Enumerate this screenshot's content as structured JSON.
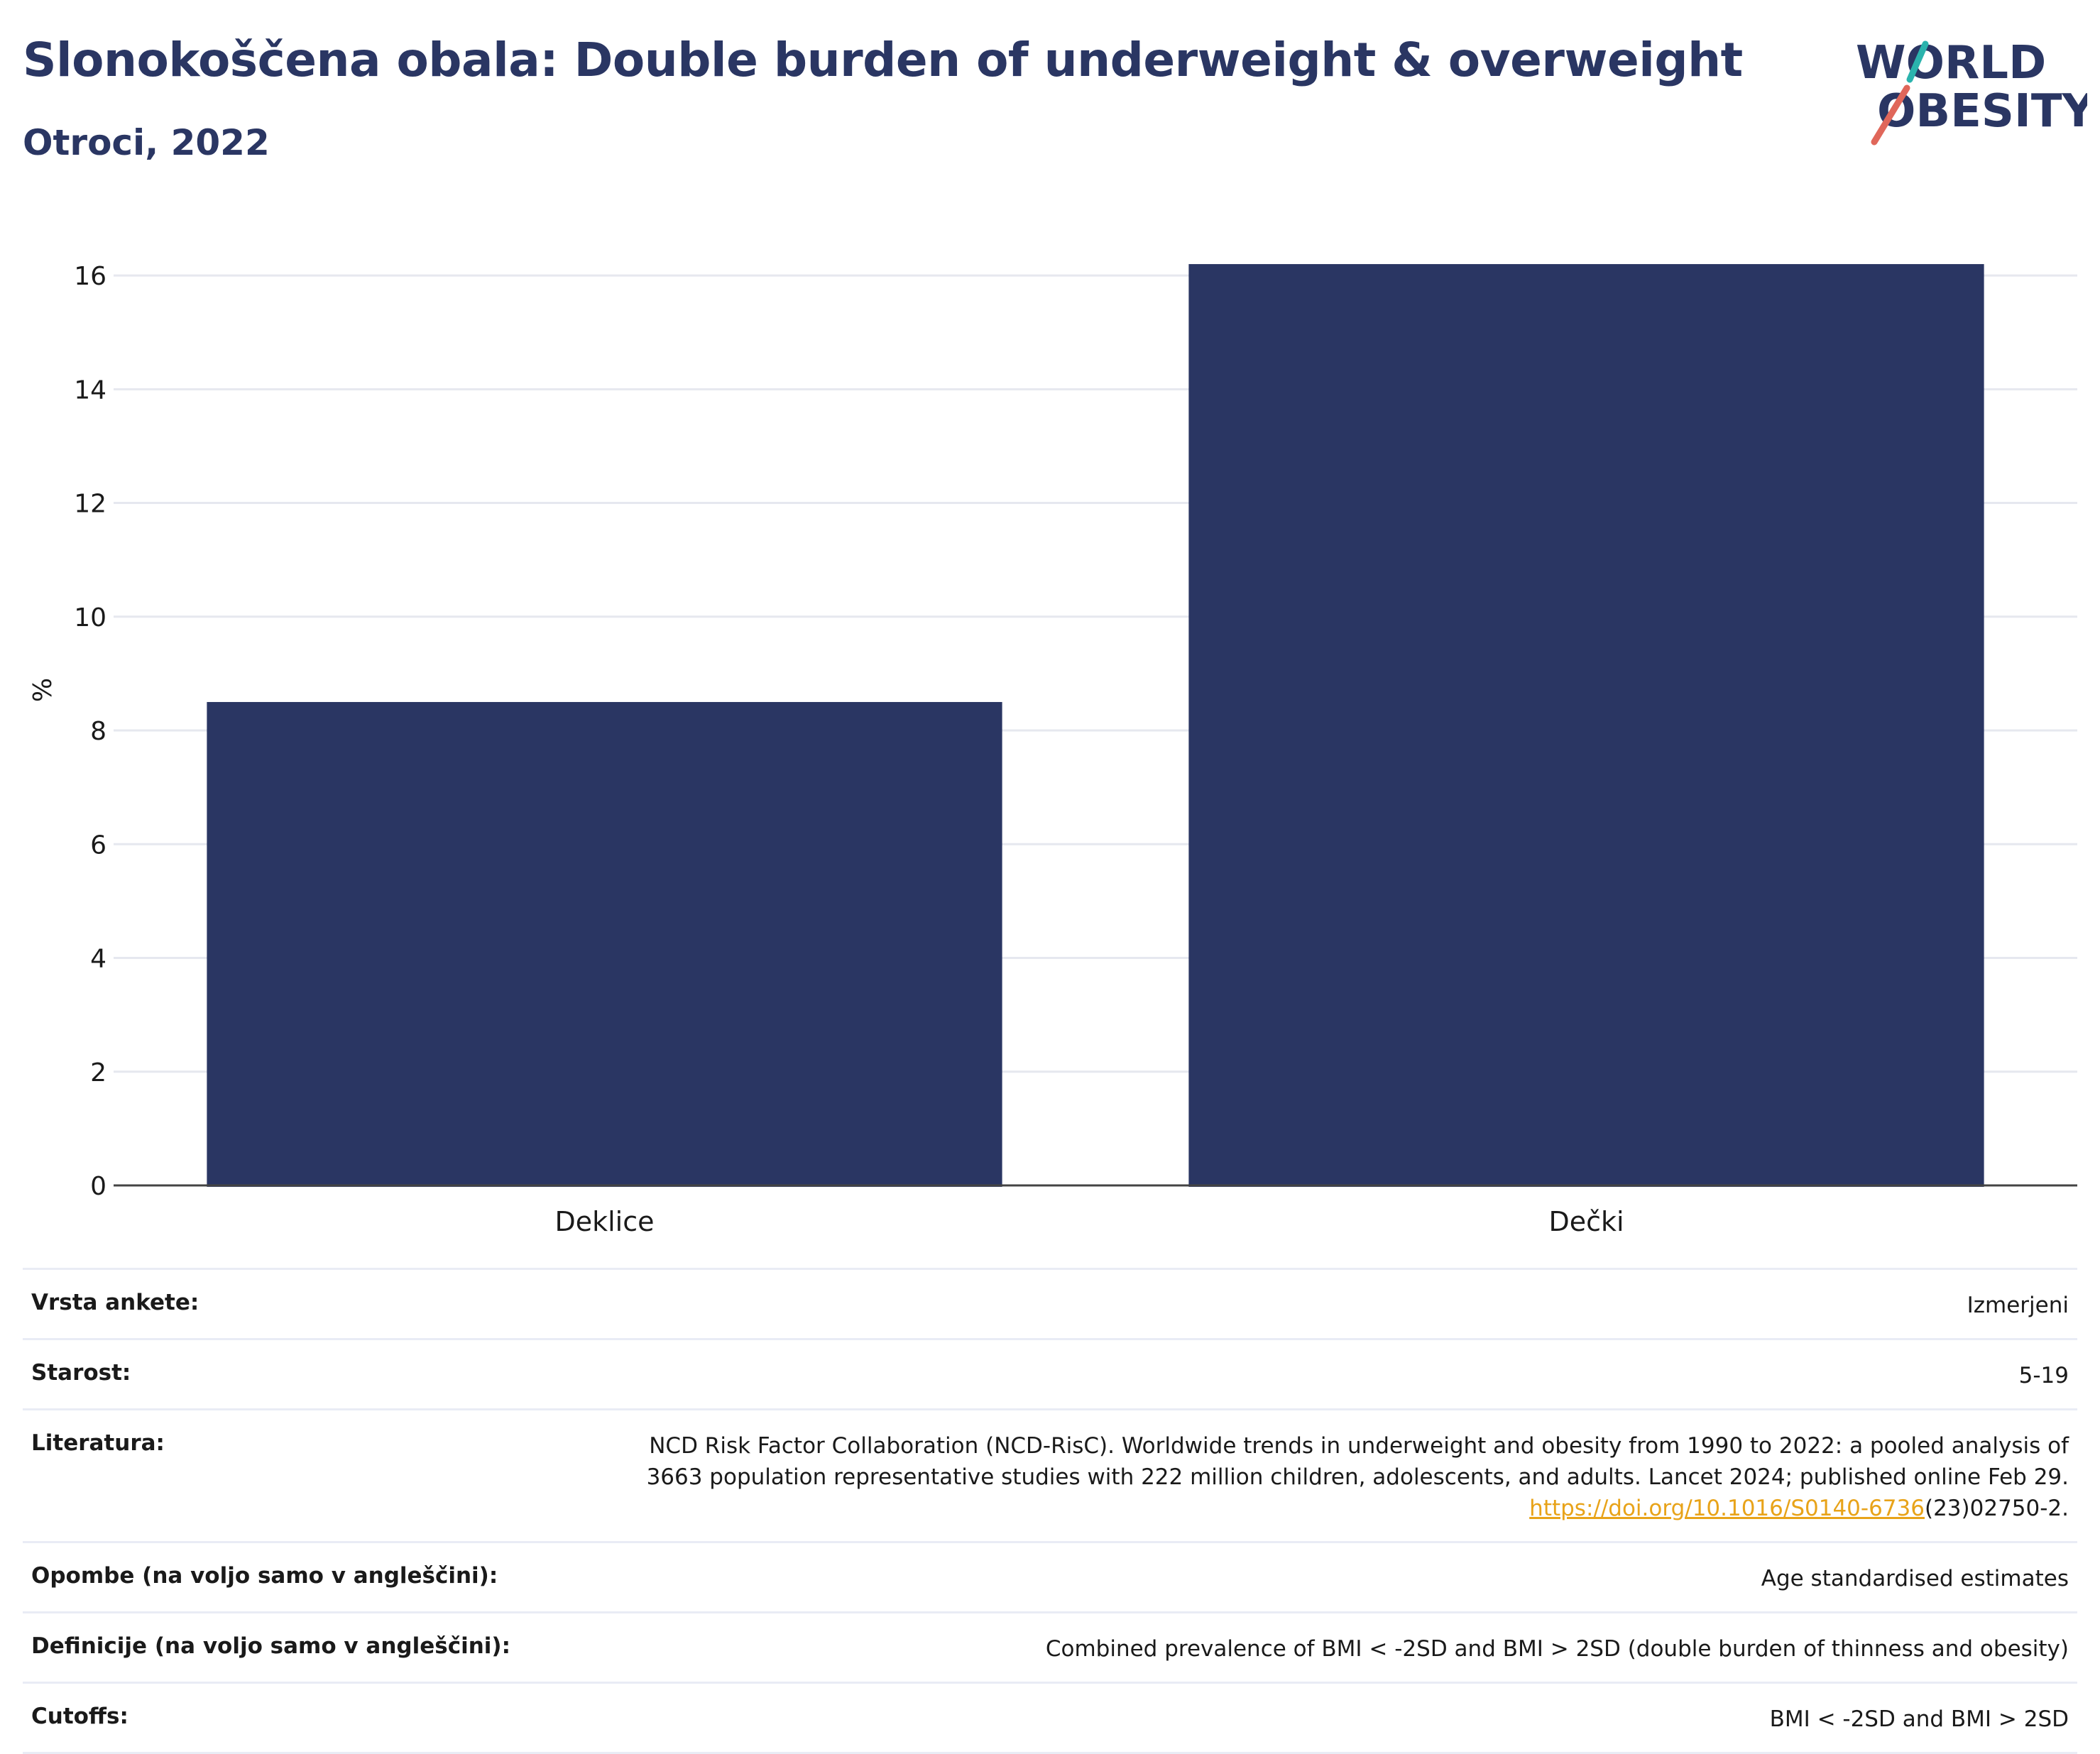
{
  "header": {
    "title": "Slonokoščena obala: Double burden of underweight & overweight",
    "subtitle": "Otroci, 2022"
  },
  "logo": {
    "line1": "WORLD",
    "line2": "OBESITY",
    "colors": {
      "text": "#2a3663",
      "slash_top": "#2bb3ad",
      "slash_bottom": "#e0675a"
    }
  },
  "chart_data": {
    "type": "bar",
    "categories": [
      "Deklice",
      "Dečki"
    ],
    "values": [
      8.5,
      16.2
    ],
    "title": "",
    "xlabel": "",
    "ylabel": "%",
    "ylim": [
      0,
      16.6
    ],
    "yticks": [
      0,
      2,
      4,
      6,
      8,
      10,
      12,
      14,
      16
    ],
    "grid": true,
    "bar_color": "#2a3663"
  },
  "meta": [
    {
      "key": "Vrsta ankete:",
      "value": "Izmerjeni"
    },
    {
      "key": "Starost:",
      "value": "5-19"
    },
    {
      "key": "Literatura:",
      "value_line1": "NCD Risk Factor Collaboration (NCD-RisC). Worldwide trends in underweight and obesity from 1990 to 2022: a pooled analysis of",
      "value_line2": "3663 population representative studies with 222 million children, adolescents, and adults. Lancet 2024; published online Feb 29.",
      "link_text": "https://doi.org/10.1016/S0140-6736",
      "link_suffix": "(23)02750-2."
    },
    {
      "key": "Opombe (na voljo samo v angleščini):",
      "value": "Age standardised estimates"
    },
    {
      "key": "Definicije (na voljo samo v angleščini):",
      "value": "Combined prevalence of BMI < -2SD and BMI > 2SD (double burden of thinness and obesity)"
    },
    {
      "key": "Cutoffs:",
      "value": "BMI < -2SD and BMI > 2SD"
    }
  ]
}
